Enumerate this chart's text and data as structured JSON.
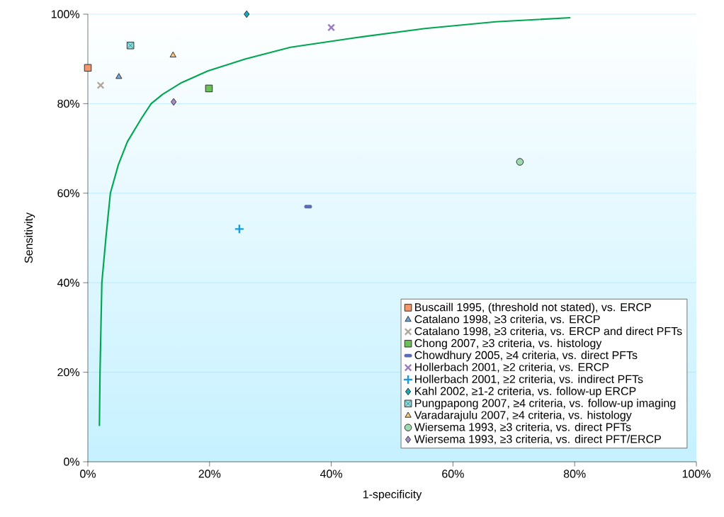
{
  "chart_data": {
    "type": "scatter",
    "xlabel": "1-specificity",
    "ylabel": "Sensitivity",
    "xlim": [
      0,
      100
    ],
    "ylim": [
      0,
      100
    ],
    "xticks": [
      {
        "value": 0,
        "label": "0%"
      },
      {
        "value": 20,
        "label": "20%"
      },
      {
        "value": 40,
        "label": "40%"
      },
      {
        "value": 60,
        "label": "60%"
      },
      {
        "value": 80,
        "label": "80%"
      },
      {
        "value": 100,
        "label": "100%"
      }
    ],
    "yticks": [
      {
        "value": 0,
        "label": "0%"
      },
      {
        "value": 20,
        "label": "20%"
      },
      {
        "value": 40,
        "label": "40%"
      },
      {
        "value": 60,
        "label": "60%"
      },
      {
        "value": 80,
        "label": "80%"
      },
      {
        "value": 100,
        "label": "100%"
      }
    ],
    "grid": "y",
    "legend": "bottom right",
    "series": [
      {
        "type": "line",
        "color": "#00a651",
        "marker": "none",
        "x": [
          1.9,
          2.0,
          2.3,
          3.0,
          3.7,
          5.0,
          6.5,
          8.8,
          10.4,
          12.3,
          15.4,
          19.7,
          25.9,
          33.3,
          43.8,
          55.4,
          67.0,
          79.3
        ],
        "values": [
          8.0,
          20.0,
          40.0,
          50.5,
          60.0,
          66.3,
          71.5,
          76.7,
          80.0,
          82.1,
          84.7,
          87.3,
          90.0,
          92.6,
          94.7,
          96.8,
          98.3,
          99.2
        ]
      },
      {
        "name": "Buscaill 1995, (threshold not stated), vs. ERCP",
        "color": "#f4956a",
        "marker": "square",
        "x": [
          0
        ],
        "values": [
          88.0
        ]
      },
      {
        "name": "Catalano 1998, ≥3 criteria, vs. ERCP",
        "color": "#6fa8dc",
        "marker": "triangle",
        "x": [
          5.1
        ],
        "values": [
          86.0
        ]
      },
      {
        "name": "Catalano 1998, ≥3 criteria, vs. ERCP and direct PFTs",
        "color": "#b0a89c",
        "marker": "cross",
        "x": [
          2.1
        ],
        "values": [
          84.1
        ]
      },
      {
        "name": "Chong 2007, ≥3 criteria, vs. histology",
        "color": "#6abf59",
        "marker": "square",
        "x": [
          19.9
        ],
        "values": [
          83.4
        ]
      },
      {
        "name": "Chowdhury 2005, ≥4 criteria, vs. direct PFTs",
        "color": "#5a6ab4",
        "x": [
          36.2
        ],
        "values": [
          57.0
        ]
      },
      {
        "name": "Hollerbach 2001, ≥2 criteria, vs. ERCP",
        "color": "#9b7bbf",
        "marker": "cross",
        "x": [
          40.0
        ],
        "values": [
          97.0
        ]
      },
      {
        "name": "Hollerbach 2001, ≥2 criteria, vs. indirect PFTs",
        "color": "#1a9ad6",
        "marker": "plus",
        "x": [
          24.9
        ],
        "values": [
          52.0
        ]
      },
      {
        "name": "Kahl 2002, ≥1-2 criteria, vs. follow-up ERCP",
        "color": "#17a9b5",
        "marker": "diamond",
        "x": [
          26.1
        ],
        "values": [
          100
        ]
      },
      {
        "name": "Pungpapong 2007, ≥4 criteria, vs. follow-up imaging",
        "color": "#9fd3d6",
        "marker": "square x",
        "x": [
          7.0
        ],
        "values": [
          93.0
        ]
      },
      {
        "name": "Varadarajulu 2007, ≥4 criteria, vs. histology",
        "color": "#f8c67a",
        "marker": "triangle",
        "x": [
          14.0
        ],
        "values": [
          90.8
        ]
      },
      {
        "name": "Wiersema 1993, ≥3 criteria, vs. direct PFTs",
        "color": "#9fd9b0",
        "marker": "circle",
        "x": [
          71.0
        ],
        "values": [
          67.0
        ]
      },
      {
        "name": "Wiersema 1993, ≥3 criteria, vs. direct PFT/ERCP",
        "color": "#a68fc8",
        "marker": "diamond",
        "x": [
          14.1
        ],
        "values": [
          80.4
        ]
      }
    ]
  }
}
